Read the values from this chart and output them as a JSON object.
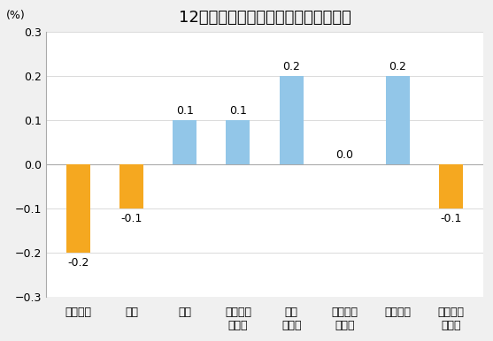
{
  "title": "12月份居民消费价格分类别环比涨跌幅",
  "ylabel": "(%)",
  "categories": [
    "食品烟酒",
    "衣着",
    "居住",
    "生活用品\n及服务",
    "交通\n和通信",
    "教育文化\n和娱乐",
    "医疗保健",
    "其他用品\n和服务"
  ],
  "values": [
    -0.2,
    -0.1,
    0.1,
    0.1,
    0.2,
    0.0,
    0.2,
    -0.1
  ],
  "bar_colors_pos": "#92C6E8",
  "bar_colors_neg": "#F5A820",
  "ylim": [
    -0.3,
    0.3
  ],
  "yticks": [
    -0.3,
    -0.2,
    -0.1,
    0.0,
    0.1,
    0.2,
    0.3
  ],
  "label_fontsize": 9,
  "title_fontsize": 13,
  "tick_fontsize": 9,
  "background_color": "#f0f0f0",
  "plot_bg_color": "#ffffff",
  "bar_width": 0.45,
  "spine_color": "#aaaaaa",
  "grid_color": "#cccccc"
}
